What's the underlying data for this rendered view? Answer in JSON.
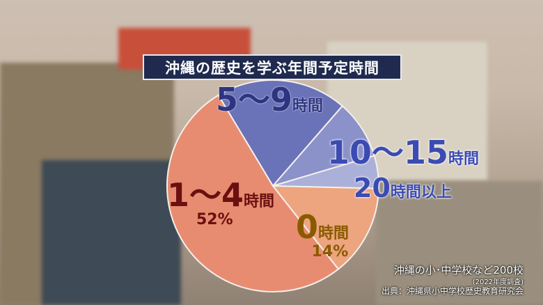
{
  "title": "沖縄の歴史を学ぶ年間予定時間",
  "chart_data": {
    "type": "pie",
    "title": "沖縄の歴史を学ぶ年間予定時間",
    "slices": [
      {
        "label": "5〜9",
        "unit": "時間",
        "value": 20,
        "value_label": "",
        "color": "#6a72b8",
        "text_color": "#2e3580"
      },
      {
        "label": "10〜15",
        "unit": "時間",
        "value": 9,
        "value_label": "",
        "color": "#8b91c9",
        "text_color": "#3c4bb2"
      },
      {
        "label": "20",
        "unit": "時間以上",
        "value": 5,
        "value_label": "",
        "color": "#abb0d8",
        "text_color": "#3c4bb2"
      },
      {
        "label": "0",
        "unit": "時間",
        "value": 14,
        "value_label": "14%",
        "color": "#eca57e",
        "text_color": "#8a5a00"
      },
      {
        "label": "1〜4",
        "unit": "時間",
        "value": 52,
        "value_label": "52%",
        "color": "#e88c71",
        "text_color": "#6b1010"
      }
    ],
    "legend": "none"
  },
  "source": {
    "line1": "沖縄の小･中学校など200校",
    "line2": "(2022年度調査)",
    "line3": "出典：沖縄県小中学校歴史教育研究会"
  }
}
